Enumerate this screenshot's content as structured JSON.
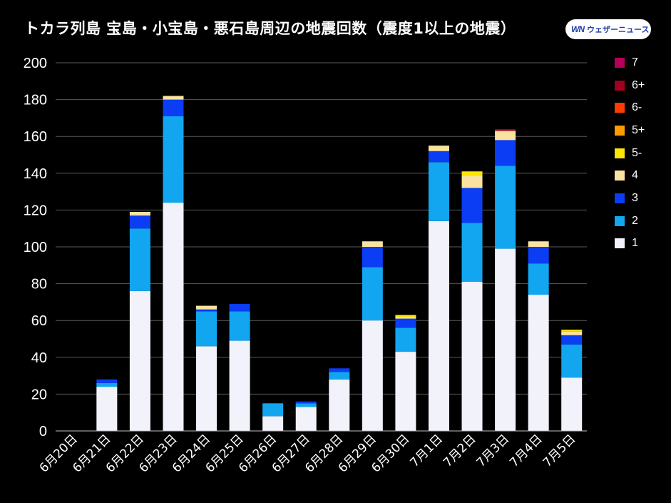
{
  "title": "トカラ列島 宝島・小宝島・悪石島周辺の地震回数（震度1以上の地震）",
  "logo": {
    "mark": "WN",
    "text": "ウェザーニュース"
  },
  "chart_data": {
    "type": "bar",
    "stacked": true,
    "title": "トカラ列島 宝島・小宝島・悪石島周辺の地震回数（震度1以上の地震）",
    "xlabel": "",
    "ylabel": "",
    "ylim": [
      0,
      200
    ],
    "yticks": [
      0,
      20,
      40,
      60,
      80,
      100,
      120,
      140,
      160,
      180,
      200
    ],
    "grid": true,
    "legend_position": "right",
    "categories": [
      "6月20日",
      "6月21日",
      "6月22日",
      "6月23日",
      "6月24日",
      "6月25日",
      "6月26日",
      "6月27日",
      "6月28日",
      "6月29日",
      "6月30日",
      "7月1日",
      "7月2日",
      "7月3日",
      "7月4日",
      "7月5日"
    ],
    "series": [
      {
        "name": "1",
        "color": "#f2f2fb",
        "values": [
          0,
          24,
          76,
          124,
          46,
          49,
          8,
          13,
          28,
          60,
          43,
          114,
          81,
          99,
          74,
          29
        ]
      },
      {
        "name": "2",
        "color": "#12a6f0",
        "values": [
          0,
          2,
          34,
          47,
          19,
          16,
          7,
          2,
          4,
          29,
          13,
          32,
          32,
          45,
          17,
          18
        ]
      },
      {
        "name": "3",
        "color": "#0b3df5",
        "values": [
          0,
          2,
          7,
          9,
          1,
          4,
          0,
          1,
          2,
          11,
          5,
          6,
          19,
          14,
          9,
          5
        ]
      },
      {
        "name": "4",
        "color": "#fae3a0",
        "values": [
          0,
          0,
          2,
          2,
          2,
          0,
          0,
          0,
          0,
          3,
          1,
          3,
          7,
          5,
          3,
          2
        ]
      },
      {
        "name": "5-",
        "color": "#ffe600",
        "values": [
          0,
          0,
          0,
          0,
          0,
          0,
          0,
          0,
          0,
          0,
          1,
          0,
          2,
          0,
          0,
          1
        ]
      },
      {
        "name": "5+",
        "color": "#ff9a00",
        "values": [
          0,
          0,
          0,
          0,
          0,
          0,
          0,
          0,
          0,
          0,
          0,
          0,
          0,
          0,
          0,
          0
        ]
      },
      {
        "name": "6-",
        "color": "#ff3c00",
        "values": [
          0,
          0,
          0,
          0,
          0,
          0,
          0,
          0,
          0,
          0,
          0,
          0,
          0,
          0,
          0,
          0
        ]
      },
      {
        "name": "6+",
        "color": "#a0001e",
        "values": [
          0,
          0,
          0,
          0,
          0,
          0,
          0,
          0,
          0,
          0,
          0,
          0,
          0,
          1,
          0,
          0
        ]
      },
      {
        "name": "7",
        "color": "#b4005a",
        "values": [
          0,
          0,
          0,
          0,
          0,
          0,
          0,
          0,
          0,
          0,
          0,
          0,
          0,
          0,
          0,
          0
        ]
      }
    ]
  }
}
